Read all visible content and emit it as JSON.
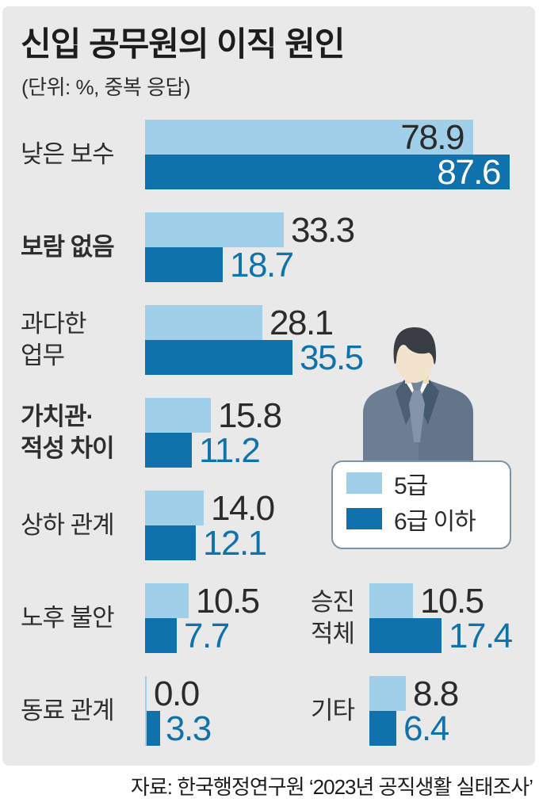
{
  "title": "신입 공무원의 이직 원인",
  "subtitle": "(단위: %, 중복 응답)",
  "source": "자료: 한국행정연구원 ‘2023년 공직생활 실태조사’",
  "legend": {
    "items": [
      {
        "label": "5급",
        "color": "#a0cfea"
      },
      {
        "label": "6급 이하",
        "color": "#0f72ad"
      }
    ]
  },
  "colors": {
    "panel_background": "#e9e9e9",
    "series_light": "#a0cfea",
    "series_dark": "#0f72ad",
    "value_text": "#2b2b2b",
    "value_text_on_dark": "#ffffff",
    "legend_border": "#7b93a6"
  },
  "chart_data": {
    "type": "bar",
    "orientation": "horizontal",
    "title": "신입 공무원의 이직 원인",
    "unit": "%, 중복 응답",
    "xlim": [
      0,
      87.6
    ],
    "grid": false,
    "legend_position": "middle-right",
    "series_names": [
      "5급",
      "6급 이하"
    ],
    "groups": [
      {
        "label": "낮은 보수",
        "column": "left",
        "bold": false,
        "values": [
          78.9,
          87.6
        ]
      },
      {
        "label": "보람 없음",
        "column": "left",
        "bold": true,
        "values": [
          33.3,
          18.7
        ]
      },
      {
        "label": "과다한\n업무",
        "column": "left",
        "bold": false,
        "values": [
          28.1,
          35.5
        ]
      },
      {
        "label": "가치관·\n적성 차이",
        "column": "left",
        "bold": true,
        "values": [
          15.8,
          11.2
        ]
      },
      {
        "label": "상하 관계",
        "column": "left",
        "bold": false,
        "values": [
          14.0,
          12.1
        ]
      },
      {
        "label": "노후 불안",
        "column": "left",
        "bold": false,
        "values": [
          10.5,
          7.7
        ]
      },
      {
        "label": "동료 관계",
        "column": "left",
        "bold": false,
        "values": [
          0.0,
          3.3
        ]
      },
      {
        "label": "승진\n적체",
        "column": "right",
        "bold": false,
        "values": [
          10.5,
          17.4
        ]
      },
      {
        "label": "기타",
        "column": "right",
        "bold": false,
        "values": [
          8.8,
          6.4
        ]
      }
    ]
  }
}
